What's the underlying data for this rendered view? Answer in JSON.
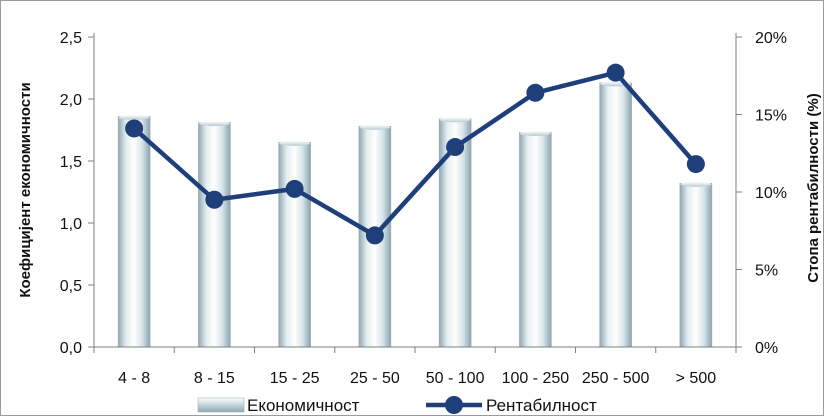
{
  "chart_data": {
    "type": "bar",
    "categories": [
      "4 -  8",
      "8 - 15",
      "15 - 25",
      "25 - 50",
      "50 - 100",
      "100 - 250",
      "250 - 500",
      "> 500"
    ],
    "series": [
      {
        "name": "Економичност",
        "type": "bar",
        "axis": "left",
        "values": [
          1.86,
          1.81,
          1.65,
          1.78,
          1.84,
          1.73,
          2.13,
          1.32
        ]
      },
      {
        "name": "Рентабилност",
        "type": "line",
        "axis": "right",
        "values": [
          14.1,
          9.5,
          10.2,
          7.2,
          12.9,
          16.4,
          17.7,
          11.8
        ]
      }
    ],
    "ylabel": "Коефицијент економичности",
    "y2label": "Стопа рентабилности (%)",
    "ylim": [
      0,
      2.5
    ],
    "y2lim": [
      0,
      20
    ],
    "yticks": [
      "0,0",
      "0,5",
      "1,0",
      "1,5",
      "2,0",
      "2,5"
    ],
    "y2ticks": [
      "0%",
      "5%",
      "10%",
      "15%",
      "20%"
    ],
    "legend_position": "bottom",
    "grid": false,
    "colors": {
      "bar": "#c9d9df",
      "line": "#1f3f7a",
      "axis": "#7f7f7f"
    }
  }
}
